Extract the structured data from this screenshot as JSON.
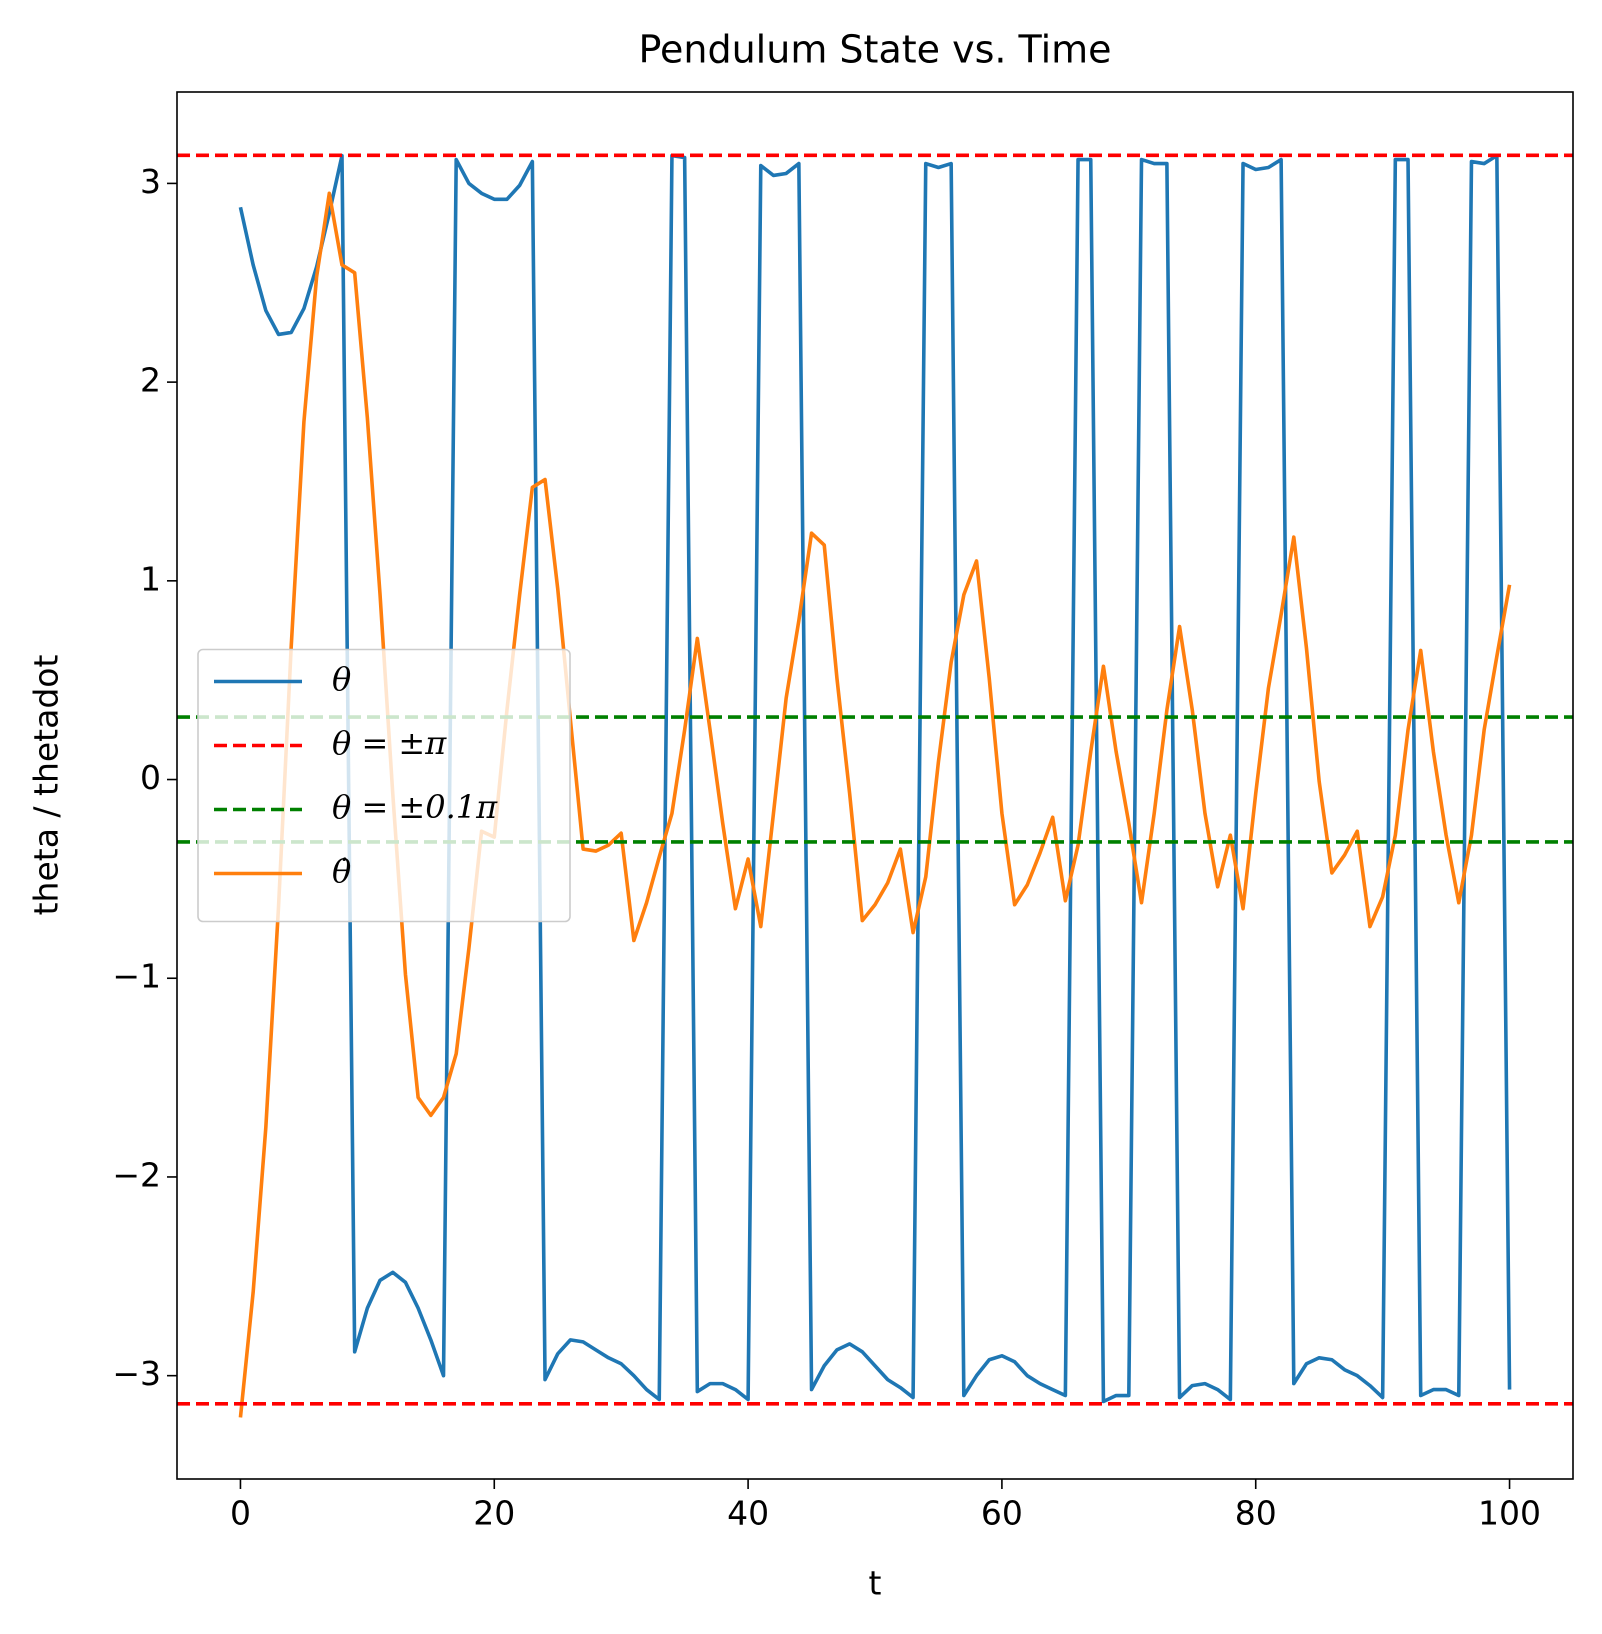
{
  "chart_data": {
    "type": "line",
    "title": "Pendulum State vs. Time",
    "xlabel": "t",
    "ylabel": "theta / thetadot",
    "x": [
      0,
      1,
      2,
      3,
      4,
      5,
      6,
      7,
      8,
      9,
      10,
      11,
      12,
      13,
      14,
      15,
      16,
      17,
      18,
      19,
      20,
      21,
      22,
      23,
      24,
      25,
      26,
      27,
      28,
      29,
      30,
      31,
      32,
      33,
      34,
      35,
      36,
      37,
      38,
      39,
      40,
      41,
      42,
      43,
      44,
      45,
      46,
      47,
      48,
      49,
      50,
      51,
      52,
      53,
      54,
      55,
      56,
      57,
      58,
      59,
      60,
      61,
      62,
      63,
      64,
      65,
      66,
      67,
      68,
      69,
      70,
      71,
      72,
      73,
      74,
      75,
      76,
      77,
      78,
      79,
      80,
      81,
      82,
      83,
      84,
      85,
      86,
      87,
      88,
      89,
      90,
      91,
      92,
      93,
      94,
      95,
      96,
      97,
      98,
      99,
      100
    ],
    "series": [
      {
        "name": "θ",
        "color": "#1f77b4",
        "values": [
          2.88,
          2.59,
          2.36,
          2.24,
          2.25,
          2.37,
          2.58,
          2.85,
          3.14,
          -2.88,
          -2.66,
          -2.52,
          -2.48,
          -2.53,
          -2.66,
          -2.82,
          -3.0,
          3.12,
          3.0,
          2.95,
          2.92,
          2.92,
          2.99,
          3.11,
          -3.02,
          -2.89,
          -2.82,
          -2.83,
          -2.87,
          -2.91,
          -2.94,
          -3.0,
          -3.07,
          -3.12,
          3.14,
          3.13,
          -3.08,
          -3.04,
          -3.04,
          -3.07,
          -3.12,
          3.09,
          3.04,
          3.05,
          3.1,
          -3.07,
          -2.95,
          -2.87,
          -2.84,
          -2.88,
          -2.95,
          -3.02,
          -3.06,
          -3.11,
          3.1,
          3.08,
          3.1,
          -3.1,
          -3.0,
          -2.92,
          -2.9,
          -2.93,
          -3.0,
          -3.04,
          -3.07,
          -3.1,
          3.12,
          3.12,
          -3.13,
          -3.1,
          -3.1,
          3.12,
          3.1,
          3.1,
          -3.11,
          -3.05,
          -3.04,
          -3.07,
          -3.12,
          3.1,
          3.07,
          3.08,
          3.12,
          -3.04,
          -2.94,
          -2.91,
          -2.92,
          -2.97,
          -3.0,
          -3.05,
          -3.11,
          3.12,
          3.12,
          -3.1,
          -3.07,
          -3.07,
          -3.1,
          3.11,
          3.1,
          3.14,
          -3.07
        ]
      },
      {
        "name": "θ̇",
        "color": "#ff7f0e",
        "values": [
          -3.21,
          -2.58,
          -1.75,
          -0.64,
          0.67,
          1.8,
          2.53,
          2.95,
          2.59,
          2.55,
          1.82,
          0.93,
          -0.07,
          -0.98,
          -1.6,
          -1.69,
          -1.6,
          -1.38,
          -0.85,
          -0.26,
          -0.29,
          0.35,
          0.93,
          1.47,
          1.51,
          0.96,
          0.3,
          -0.35,
          -0.36,
          -0.33,
          -0.27,
          -0.81,
          -0.62,
          -0.39,
          -0.17,
          0.25,
          0.71,
          0.25,
          -0.22,
          -0.65,
          -0.4,
          -0.74,
          -0.17,
          0.41,
          0.8,
          1.24,
          1.18,
          0.51,
          -0.07,
          -0.71,
          -0.63,
          -0.52,
          -0.35,
          -0.77,
          -0.49,
          0.09,
          0.59,
          0.93,
          1.1,
          0.51,
          -0.17,
          -0.63,
          -0.53,
          -0.37,
          -0.19,
          -0.61,
          -0.33,
          0.14,
          0.57,
          0.14,
          -0.22,
          -0.62,
          -0.17,
          0.35,
          0.77,
          0.35,
          -0.17,
          -0.54,
          -0.28,
          -0.65,
          -0.07,
          0.46,
          0.83,
          1.22,
          0.66,
          -0.01,
          -0.47,
          -0.38,
          -0.26,
          -0.74,
          -0.59,
          -0.28,
          0.25,
          0.65,
          0.14,
          -0.28,
          -0.62,
          -0.28,
          0.25,
          0.62,
          0.98
        ]
      }
    ],
    "hlines": [
      {
        "name": "θ = ±π",
        "color": "#ff0000",
        "values": [
          3.14159,
          -3.14159
        ]
      },
      {
        "name": "θ = ±0.1π",
        "color": "#008000",
        "values": [
          0.314159,
          -0.314159
        ]
      }
    ],
    "legend_order": [
      "series.0",
      "hlines.0",
      "hlines.1",
      "series.1"
    ],
    "legend": "center left",
    "xlim": [
      -5,
      105
    ],
    "ylim": [
      -3.52,
      3.46
    ],
    "xticks": [
      0,
      20,
      40,
      60,
      80,
      100
    ],
    "yticks": [
      {
        "value": -3,
        "label": "−3"
      },
      {
        "value": -2,
        "label": "−2"
      },
      {
        "value": -1,
        "label": "−1"
      },
      0,
      1,
      2,
      3
    ],
    "grid": false
  }
}
